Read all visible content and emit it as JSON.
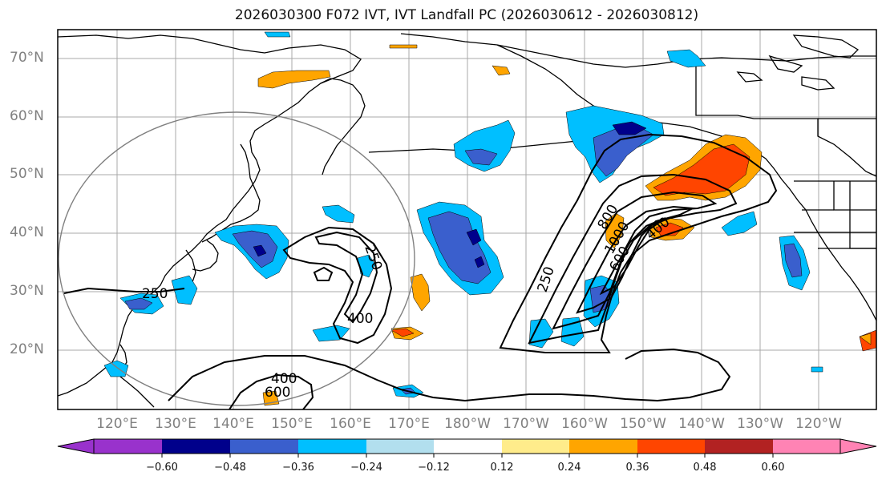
{
  "title": "2026030300 F072 IVT, IVT Landfall PC (2026030612 - 2026030812)",
  "lat_labels": [
    "70°N",
    "60°N",
    "50°N",
    "40°N",
    "30°N",
    "20°N"
  ],
  "lon_labels": [
    "120°E",
    "130°E",
    "140°E",
    "150°E",
    "160°E",
    "170°E",
    "180°W",
    "170°W",
    "160°W",
    "150°W",
    "140°W",
    "130°W",
    "120°W"
  ],
  "contour_labels": [
    "250",
    "250",
    "250",
    "400",
    "400",
    "600",
    "800",
    "1000",
    "600",
    "400"
  ],
  "colorbar": {
    "ticks": [
      "−0.60",
      "−0.48",
      "−0.36",
      "−0.24",
      "−0.12",
      "0.12",
      "0.24",
      "0.36",
      "0.48",
      "0.60"
    ],
    "colors": [
      "#9932cc",
      "#00008b",
      "#3a5fcd",
      "#00bfff",
      "#b2dfee",
      "#ffffff",
      "#ffec8b",
      "#ffa500",
      "#ff4500",
      "#b22222",
      "#ff83b4"
    ]
  },
  "colors": {
    "ocean_background": "#ffffff",
    "coastline": "#000000",
    "gridline": "#a9a9a9",
    "contour": "#000000",
    "circle": "#808080",
    "axis_label": "#808080"
  }
}
